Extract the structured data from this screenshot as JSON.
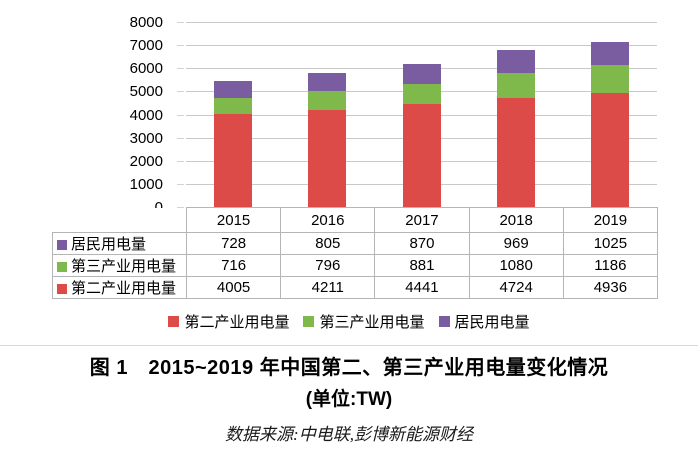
{
  "chart_data": {
    "type": "bar",
    "stacked": true,
    "categories": [
      "2015",
      "2016",
      "2017",
      "2018",
      "2019"
    ],
    "series": [
      {
        "name": "第二产业用电量",
        "color": "#DC4B47",
        "values": [
          4005,
          4211,
          4441,
          4724,
          4936
        ]
      },
      {
        "name": "第三产业用电量",
        "color": "#7FB94C",
        "values": [
          716,
          796,
          881,
          1080,
          1186
        ]
      },
      {
        "name": "居民用电量",
        "color": "#7A5DA0",
        "values": [
          728,
          805,
          870,
          969,
          1025
        ]
      }
    ],
    "ylim": [
      0,
      8000
    ],
    "ytick_step": 1000,
    "grid": true,
    "legend_position": "bottom",
    "xlabel": "",
    "ylabel": ""
  },
  "table": {
    "header": [
      "2015",
      "2016",
      "2017",
      "2018",
      "2019"
    ],
    "rows": [
      {
        "label": "居民用电量",
        "color": "#7A5DA0",
        "values": [
          "728",
          "805",
          "870",
          "969",
          "1025"
        ]
      },
      {
        "label": "第三产业用电量",
        "color": "#7FB94C",
        "values": [
          "716",
          "796",
          "881",
          "1080",
          "1186"
        ]
      },
      {
        "label": "第二产业用电量",
        "color": "#DC4B47",
        "values": [
          "4005",
          "4211",
          "4441",
          "4724",
          "4936"
        ]
      }
    ]
  },
  "legend": [
    {
      "label": "第二产业用电量",
      "color": "#DC4B47"
    },
    {
      "label": "第三产业用电量",
      "color": "#7FB94C"
    },
    {
      "label": "居民用电量",
      "color": "#7A5DA0"
    }
  ],
  "caption": {
    "line1": "图 1　2015~2019 年中国第二、第三产业用电量变化情况",
    "line2": "(单位:TW)"
  },
  "source": "数据来源:中电联,彭博新能源财经"
}
